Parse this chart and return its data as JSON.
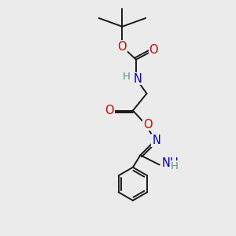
{
  "bg_color": "#ebebeb",
  "line_color": "#1a1a1a",
  "O_color": "#cc0000",
  "N_color": "#0000cc",
  "H_color": "#5a9090",
  "bond_lw": 1.4,
  "font_size": 10.5,
  "xlim": [
    0,
    8
  ],
  "ylim": [
    0,
    11
  ]
}
